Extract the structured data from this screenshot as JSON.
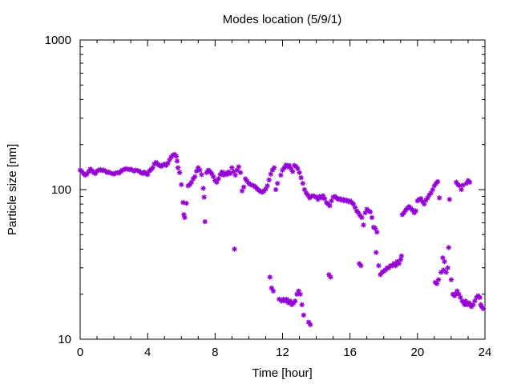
{
  "chart_data": {
    "type": "scatter",
    "title": "Modes location (5/9/1)",
    "xlabel": "Time [hour]",
    "ylabel": "Particle size [nm]",
    "xlim": [
      0,
      24
    ],
    "ylim": [
      10,
      1000
    ],
    "yscale": "log",
    "xticks": [
      0,
      4,
      8,
      12,
      16,
      20,
      24
    ],
    "yticks": [
      10,
      100,
      1000
    ],
    "grid": false,
    "marker_color": "#9400d3",
    "marker": "asterisk",
    "series": [
      {
        "name": "",
        "points": [
          [
            0.0,
            135
          ],
          [
            0.1,
            132
          ],
          [
            0.2,
            128
          ],
          [
            0.3,
            125
          ],
          [
            0.4,
            127
          ],
          [
            0.5,
            132
          ],
          [
            0.6,
            137
          ],
          [
            0.7,
            134
          ],
          [
            0.8,
            130
          ],
          [
            0.9,
            128
          ],
          [
            1.0,
            133
          ],
          [
            1.1,
            135
          ],
          [
            1.2,
            136
          ],
          [
            1.3,
            134
          ],
          [
            1.4,
            135
          ],
          [
            1.5,
            133
          ],
          [
            1.6,
            130
          ],
          [
            1.7,
            131
          ],
          [
            1.8,
            129
          ],
          [
            1.9,
            128
          ],
          [
            2.0,
            127
          ],
          [
            2.1,
            129
          ],
          [
            2.2,
            130
          ],
          [
            2.3,
            129
          ],
          [
            2.4,
            132
          ],
          [
            2.5,
            135
          ],
          [
            2.6,
            136
          ],
          [
            2.7,
            138
          ],
          [
            2.8,
            137
          ],
          [
            2.9,
            136
          ],
          [
            3.0,
            137
          ],
          [
            3.1,
            135
          ],
          [
            3.2,
            133
          ],
          [
            3.3,
            135
          ],
          [
            3.4,
            134
          ],
          [
            3.5,
            133
          ],
          [
            3.6,
            130
          ],
          [
            3.7,
            128
          ],
          [
            3.8,
            131
          ],
          [
            3.9,
            128
          ],
          [
            4.0,
            126
          ],
          [
            4.1,
            133
          ],
          [
            4.2,
            136
          ],
          [
            4.3,
            140
          ],
          [
            4.4,
            148
          ],
          [
            4.5,
            152
          ],
          [
            4.6,
            148
          ],
          [
            4.7,
            145
          ],
          [
            4.8,
            143
          ],
          [
            4.9,
            146
          ],
          [
            5.0,
            148
          ],
          [
            5.1,
            145
          ],
          [
            5.2,
            150
          ],
          [
            5.3,
            158
          ],
          [
            5.4,
            165
          ],
          [
            5.5,
            170
          ],
          [
            5.6,
            172
          ],
          [
            5.7,
            167
          ],
          [
            5.75,
            155
          ],
          [
            5.8,
            140
          ],
          [
            5.9,
            130
          ],
          [
            6.0,
            108
          ],
          [
            6.1,
            82
          ],
          [
            6.15,
            68
          ],
          [
            6.2,
            65
          ],
          [
            6.3,
            81
          ],
          [
            6.4,
            106
          ],
          [
            6.5,
            108
          ],
          [
            6.6,
            112
          ],
          [
            6.7,
            118
          ],
          [
            6.8,
            122
          ],
          [
            6.9,
            133
          ],
          [
            7.0,
            140
          ],
          [
            7.1,
            135
          ],
          [
            7.2,
            126
          ],
          [
            7.3,
            102
          ],
          [
            7.35,
            89
          ],
          [
            7.4,
            61
          ],
          [
            7.5,
            130
          ],
          [
            7.6,
            135
          ],
          [
            7.7,
            132
          ],
          [
            7.8,
            128
          ],
          [
            7.9,
            122
          ],
          [
            8.0,
            115
          ],
          [
            8.1,
            112
          ],
          [
            8.2,
            118
          ],
          [
            8.3,
            126
          ],
          [
            8.4,
            131
          ],
          [
            8.5,
            125
          ],
          [
            8.6,
            129
          ],
          [
            8.7,
            126
          ],
          [
            8.8,
            131
          ],
          [
            8.9,
            128
          ],
          [
            9.0,
            140
          ],
          [
            9.1,
            132
          ],
          [
            9.15,
            40
          ],
          [
            9.2,
            125
          ],
          [
            9.3,
            135
          ],
          [
            9.4,
            142
          ],
          [
            9.5,
            130
          ],
          [
            9.6,
            98
          ],
          [
            9.7,
            104
          ],
          [
            9.8,
            118
          ],
          [
            9.9,
            114
          ],
          [
            10.0,
            110
          ],
          [
            10.1,
            108
          ],
          [
            10.2,
            107
          ],
          [
            10.3,
            106
          ],
          [
            10.4,
            104
          ],
          [
            10.5,
            101
          ],
          [
            10.6,
            99
          ],
          [
            10.7,
            97
          ],
          [
            10.8,
            96
          ],
          [
            10.9,
            98
          ],
          [
            11.0,
            101
          ],
          [
            11.1,
            106
          ],
          [
            11.2,
            116
          ],
          [
            11.25,
            26
          ],
          [
            11.3,
            127
          ],
          [
            11.35,
            22
          ],
          [
            11.4,
            135
          ],
          [
            11.45,
            21
          ],
          [
            11.5,
            140
          ],
          [
            11.6,
            100
          ],
          [
            11.7,
            110
          ],
          [
            11.8,
            18.5
          ],
          [
            11.9,
            125
          ],
          [
            11.95,
            18
          ],
          [
            12.0,
            135
          ],
          [
            12.05,
            18.5
          ],
          [
            12.1,
            140
          ],
          [
            12.15,
            18
          ],
          [
            12.2,
            146
          ],
          [
            12.25,
            18.5
          ],
          [
            12.3,
            142
          ],
          [
            12.35,
            17.5
          ],
          [
            12.4,
            145
          ],
          [
            12.45,
            18
          ],
          [
            12.5,
            138
          ],
          [
            12.55,
            17
          ],
          [
            12.6,
            132
          ],
          [
            12.65,
            17.5
          ],
          [
            12.7,
            145
          ],
          [
            12.75,
            18
          ],
          [
            12.8,
            143
          ],
          [
            12.85,
            20
          ],
          [
            12.9,
            138
          ],
          [
            12.95,
            21
          ],
          [
            13.0,
            130
          ],
          [
            13.05,
            20
          ],
          [
            13.1,
            120
          ],
          [
            13.15,
            17
          ],
          [
            13.2,
            110
          ],
          [
            13.25,
            14.5
          ],
          [
            13.3,
            100
          ],
          [
            13.4,
            95
          ],
          [
            13.5,
            92
          ],
          [
            13.55,
            13
          ],
          [
            13.6,
            88
          ],
          [
            13.65,
            12.5
          ],
          [
            13.7,
            90
          ],
          [
            13.8,
            91
          ],
          [
            13.9,
            90
          ],
          [
            14.0,
            89
          ],
          [
            14.1,
            86
          ],
          [
            14.2,
            90
          ],
          [
            14.3,
            88
          ],
          [
            14.4,
            91
          ],
          [
            14.5,
            87
          ],
          [
            14.6,
            82
          ],
          [
            14.7,
            80
          ],
          [
            14.75,
            27
          ],
          [
            14.8,
            78
          ],
          [
            14.85,
            26
          ],
          [
            14.9,
            84
          ],
          [
            15.0,
            89
          ],
          [
            15.1,
            90
          ],
          [
            15.2,
            88
          ],
          [
            15.3,
            86
          ],
          [
            15.4,
            87
          ],
          [
            15.5,
            85
          ],
          [
            15.6,
            86
          ],
          [
            15.7,
            84
          ],
          [
            15.8,
            85
          ],
          [
            15.9,
            83
          ],
          [
            16.0,
            84
          ],
          [
            16.1,
            82
          ],
          [
            16.2,
            80
          ],
          [
            16.3,
            76
          ],
          [
            16.4,
            72
          ],
          [
            16.5,
            70
          ],
          [
            16.55,
            32
          ],
          [
            16.6,
            67
          ],
          [
            16.65,
            31
          ],
          [
            16.7,
            65
          ],
          [
            16.8,
            58
          ],
          [
            16.9,
            70
          ],
          [
            17.0,
            74
          ],
          [
            17.1,
            72
          ],
          [
            17.2,
            71
          ],
          [
            17.3,
            65
          ],
          [
            17.4,
            56
          ],
          [
            17.5,
            55
          ],
          [
            17.55,
            38
          ],
          [
            17.6,
            52
          ],
          [
            17.7,
            31
          ],
          [
            17.8,
            27
          ],
          [
            17.9,
            28
          ],
          [
            18.0,
            28.5
          ],
          [
            18.1,
            29
          ],
          [
            18.2,
            30
          ],
          [
            18.3,
            30
          ],
          [
            18.4,
            31
          ],
          [
            18.5,
            31
          ],
          [
            18.6,
            32
          ],
          [
            18.7,
            31
          ],
          [
            18.8,
            33
          ],
          [
            18.9,
            32
          ],
          [
            19.0,
            34
          ],
          [
            19.05,
            36
          ],
          [
            19.1,
            68
          ],
          [
            19.2,
            70
          ],
          [
            19.3,
            73
          ],
          [
            19.4,
            75
          ],
          [
            19.5,
            77
          ],
          [
            19.6,
            75
          ],
          [
            19.7,
            73
          ],
          [
            19.8,
            70
          ],
          [
            19.9,
            72
          ],
          [
            20.0,
            84
          ],
          [
            20.1,
            86
          ],
          [
            20.2,
            87
          ],
          [
            20.3,
            83
          ],
          [
            20.4,
            80
          ],
          [
            20.5,
            85
          ],
          [
            20.6,
            88
          ],
          [
            20.7,
            92
          ],
          [
            20.8,
            95
          ],
          [
            20.9,
            100
          ],
          [
            21.0,
            106
          ],
          [
            21.05,
            24
          ],
          [
            21.1,
            110
          ],
          [
            21.15,
            23.5
          ],
          [
            21.2,
            113
          ],
          [
            21.25,
            25
          ],
          [
            21.3,
            88
          ],
          [
            21.4,
            28
          ],
          [
            21.5,
            35
          ],
          [
            21.55,
            29
          ],
          [
            21.6,
            33
          ],
          [
            21.7,
            28
          ],
          [
            21.8,
            30
          ],
          [
            21.85,
            41
          ],
          [
            21.9,
            86
          ],
          [
            22.0,
            25
          ],
          [
            22.1,
            20
          ],
          [
            22.2,
            19.5
          ],
          [
            22.25,
            20
          ],
          [
            22.3,
            112
          ],
          [
            22.35,
            21
          ],
          [
            22.4,
            108
          ],
          [
            22.45,
            20
          ],
          [
            22.5,
            106
          ],
          [
            22.55,
            19
          ],
          [
            22.6,
            100
          ],
          [
            22.65,
            18
          ],
          [
            22.7,
            107
          ],
          [
            22.75,
            17.5
          ],
          [
            22.8,
            17
          ],
          [
            22.85,
            18
          ],
          [
            22.9,
            110
          ],
          [
            22.95,
            17
          ],
          [
            23.0,
            115
          ],
          [
            23.05,
            17.5
          ],
          [
            23.1,
            112
          ],
          [
            23.15,
            17
          ],
          [
            23.2,
            16.5
          ],
          [
            23.3,
            17
          ],
          [
            23.4,
            18
          ],
          [
            23.5,
            19
          ],
          [
            23.6,
            19.5
          ],
          [
            23.7,
            19
          ],
          [
            23.75,
            17
          ],
          [
            23.8,
            16.5
          ],
          [
            23.9,
            16
          ]
        ]
      }
    ]
  }
}
